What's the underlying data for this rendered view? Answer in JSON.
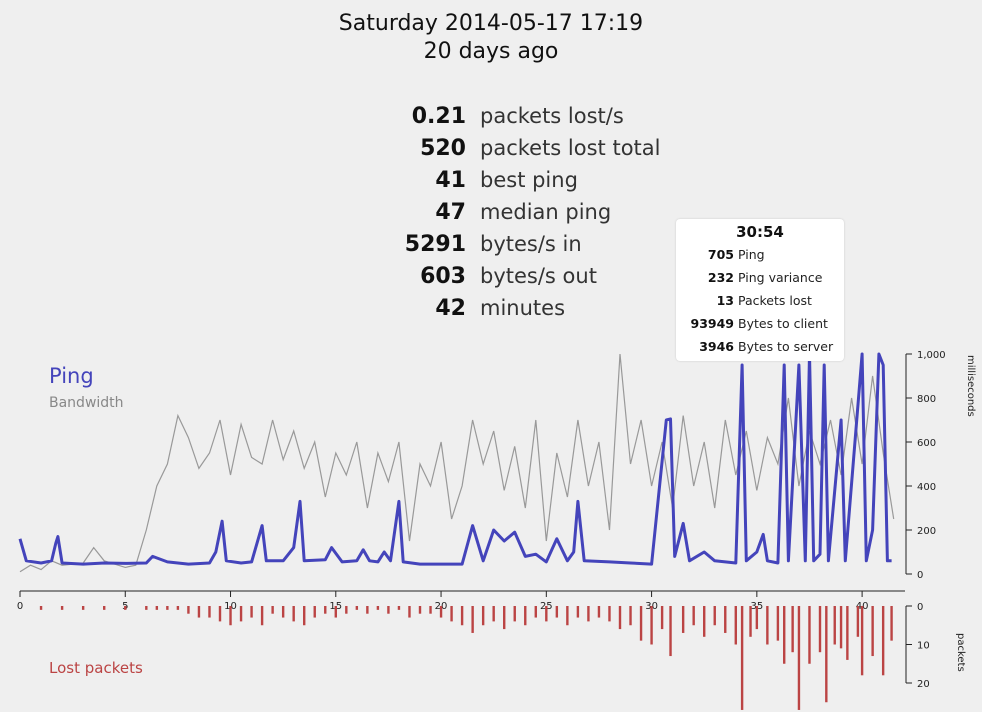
{
  "header": {
    "date": "Saturday 2014-05-17 17:19",
    "ago": "20 days ago"
  },
  "stats": [
    {
      "value": "0.21",
      "label": "packets lost/s"
    },
    {
      "value": "520",
      "label": "packets lost total"
    },
    {
      "value": "41",
      "label": "best ping"
    },
    {
      "value": "47",
      "label": "median ping"
    },
    {
      "value": "5291",
      "label": "bytes/s in"
    },
    {
      "value": "603",
      "label": "bytes/s out"
    },
    {
      "value": "42",
      "label": "minutes"
    }
  ],
  "tooltip": {
    "time": "30:54",
    "rows": [
      {
        "value": "705",
        "label": "Ping"
      },
      {
        "value": "232",
        "label": "Ping variance"
      },
      {
        "value": "13",
        "label": "Packets lost"
      },
      {
        "value": "93949",
        "label": "Bytes to client"
      },
      {
        "value": "3946",
        "label": "Bytes to server"
      }
    ]
  },
  "legend": {
    "ping": "Ping",
    "bandwidth": "Bandwidth",
    "lost": "Lost packets"
  },
  "colors": {
    "ping": "#4444bb",
    "bandwidth": "#999999",
    "lost": "#bb4444"
  },
  "chart_data": {
    "type": "line",
    "x_ticks": [
      0,
      5,
      10,
      15,
      20,
      25,
      30,
      35,
      40
    ],
    "x_range": [
      0,
      41.8
    ],
    "y_right_label": "milliseconds",
    "y_ticks": [
      0,
      200,
      400,
      600,
      800,
      1000
    ],
    "y_tick_labels": [
      "0",
      "200",
      "400",
      "600",
      "800",
      "1,000"
    ],
    "y_range": [
      0,
      1000
    ],
    "lost_label": "packets",
    "lost_ticks": [
      0,
      10,
      20
    ],
    "lost_range": [
      0,
      20
    ],
    "series": [
      {
        "name": "Ping",
        "points": [
          [
            0,
            160
          ],
          [
            0.3,
            60
          ],
          [
            1,
            50
          ],
          [
            1.5,
            60
          ],
          [
            1.7,
            140
          ],
          [
            1.8,
            170
          ],
          [
            2,
            50
          ],
          [
            3,
            45
          ],
          [
            4,
            50
          ],
          [
            5,
            48
          ],
          [
            6,
            50
          ],
          [
            6.3,
            80
          ],
          [
            7,
            55
          ],
          [
            8,
            45
          ],
          [
            9,
            50
          ],
          [
            9.3,
            100
          ],
          [
            9.6,
            240
          ],
          [
            9.8,
            60
          ],
          [
            10.5,
            50
          ],
          [
            11,
            55
          ],
          [
            11.5,
            220
          ],
          [
            11.7,
            60
          ],
          [
            12.5,
            60
          ],
          [
            13,
            120
          ],
          [
            13.3,
            330
          ],
          [
            13.5,
            60
          ],
          [
            14.5,
            65
          ],
          [
            14.8,
            120
          ],
          [
            15.3,
            55
          ],
          [
            16,
            60
          ],
          [
            16.3,
            110
          ],
          [
            16.6,
            60
          ],
          [
            17,
            55
          ],
          [
            17.3,
            100
          ],
          [
            17.6,
            60
          ],
          [
            18,
            330
          ],
          [
            18.2,
            55
          ],
          [
            19,
            45
          ],
          [
            20,
            45
          ],
          [
            21,
            45
          ],
          [
            21.5,
            220
          ],
          [
            22,
            60
          ],
          [
            22.5,
            200
          ],
          [
            23,
            150
          ],
          [
            23.5,
            190
          ],
          [
            24,
            80
          ],
          [
            24.5,
            90
          ],
          [
            25,
            55
          ],
          [
            25.5,
            160
          ],
          [
            26,
            60
          ],
          [
            26.3,
            100
          ],
          [
            26.5,
            330
          ],
          [
            26.8,
            60
          ],
          [
            28,
            55
          ],
          [
            29,
            50
          ],
          [
            30,
            45
          ],
          [
            30.7,
            700
          ],
          [
            30.9,
            705
          ],
          [
            31.1,
            80
          ],
          [
            31.5,
            230
          ],
          [
            31.8,
            60
          ],
          [
            32.5,
            100
          ],
          [
            33,
            60
          ],
          [
            34,
            50
          ],
          [
            34.3,
            950
          ],
          [
            34.5,
            60
          ],
          [
            35,
            100
          ],
          [
            35.3,
            180
          ],
          [
            35.5,
            60
          ],
          [
            36,
            50
          ],
          [
            36.3,
            950
          ],
          [
            36.5,
            60
          ],
          [
            37,
            950
          ],
          [
            37.3,
            60
          ],
          [
            37.5,
            1000
          ],
          [
            37.7,
            60
          ],
          [
            38,
            90
          ],
          [
            38.2,
            950
          ],
          [
            38.4,
            60
          ],
          [
            39,
            700
          ],
          [
            39.2,
            60
          ],
          [
            40,
            1000
          ],
          [
            40.2,
            60
          ],
          [
            40.5,
            200
          ],
          [
            40.8,
            1000
          ],
          [
            41,
            950
          ],
          [
            41.2,
            60
          ],
          [
            41.4,
            60
          ]
        ]
      },
      {
        "name": "Bandwidth",
        "points": [
          [
            0,
            10
          ],
          [
            0.5,
            40
          ],
          [
            1,
            20
          ],
          [
            1.5,
            60
          ],
          [
            2,
            40
          ],
          [
            3,
            50
          ],
          [
            3.5,
            120
          ],
          [
            4,
            60
          ],
          [
            5,
            30
          ],
          [
            5.5,
            40
          ],
          [
            6,
            200
          ],
          [
            6.5,
            400
          ],
          [
            7,
            500
          ],
          [
            7.5,
            720
          ],
          [
            8,
            620
          ],
          [
            8.5,
            480
          ],
          [
            9,
            550
          ],
          [
            9.5,
            700
          ],
          [
            10,
            450
          ],
          [
            10.5,
            680
          ],
          [
            11,
            530
          ],
          [
            11.5,
            500
          ],
          [
            12,
            700
          ],
          [
            12.5,
            520
          ],
          [
            13,
            650
          ],
          [
            13.5,
            480
          ],
          [
            14,
            600
          ],
          [
            14.5,
            350
          ],
          [
            15,
            550
          ],
          [
            15.5,
            450
          ],
          [
            16,
            600
          ],
          [
            16.5,
            300
          ],
          [
            17,
            550
          ],
          [
            17.5,
            420
          ],
          [
            18,
            600
          ],
          [
            18.5,
            150
          ],
          [
            19,
            500
          ],
          [
            19.5,
            400
          ],
          [
            20,
            600
          ],
          [
            20.5,
            250
          ],
          [
            21,
            400
          ],
          [
            21.5,
            700
          ],
          [
            22,
            500
          ],
          [
            22.5,
            650
          ],
          [
            23,
            380
          ],
          [
            23.5,
            580
          ],
          [
            24,
            300
          ],
          [
            24.5,
            700
          ],
          [
            25,
            150
          ],
          [
            25.5,
            550
          ],
          [
            26,
            350
          ],
          [
            26.5,
            700
          ],
          [
            27,
            400
          ],
          [
            27.5,
            600
          ],
          [
            28,
            200
          ],
          [
            28.5,
            1000
          ],
          [
            29,
            500
          ],
          [
            29.5,
            700
          ],
          [
            30,
            400
          ],
          [
            30.5,
            600
          ],
          [
            31,
            300
          ],
          [
            31.5,
            720
          ],
          [
            32,
            400
          ],
          [
            32.5,
            600
          ],
          [
            33,
            300
          ],
          [
            33.5,
            700
          ],
          [
            34,
            450
          ],
          [
            34.5,
            650
          ],
          [
            35,
            380
          ],
          [
            35.5,
            620
          ],
          [
            36,
            500
          ],
          [
            36.5,
            800
          ],
          [
            37,
            400
          ],
          [
            37.5,
            650
          ],
          [
            38,
            500
          ],
          [
            38.5,
            700
          ],
          [
            39,
            450
          ],
          [
            39.5,
            800
          ],
          [
            40,
            500
          ],
          [
            40.5,
            900
          ],
          [
            41,
            550
          ],
          [
            41.5,
            250
          ]
        ]
      }
    ],
    "lost_packets": [
      [
        1,
        1
      ],
      [
        2,
        1
      ],
      [
        3,
        1
      ],
      [
        4,
        1
      ],
      [
        5,
        1
      ],
      [
        6,
        1
      ],
      [
        6.5,
        1
      ],
      [
        7,
        1
      ],
      [
        7.5,
        1
      ],
      [
        8,
        2
      ],
      [
        8.5,
        3
      ],
      [
        9,
        3
      ],
      [
        9.5,
        4
      ],
      [
        10,
        5
      ],
      [
        10.5,
        4
      ],
      [
        11,
        3
      ],
      [
        11.5,
        5
      ],
      [
        12,
        2
      ],
      [
        12.5,
        3
      ],
      [
        13,
        4
      ],
      [
        13.5,
        5
      ],
      [
        14,
        3
      ],
      [
        14.5,
        2
      ],
      [
        15,
        3
      ],
      [
        15.5,
        2
      ],
      [
        16,
        1
      ],
      [
        16.5,
        2
      ],
      [
        17,
        1
      ],
      [
        17.5,
        2
      ],
      [
        18,
        1
      ],
      [
        18.5,
        3
      ],
      [
        19,
        2
      ],
      [
        19.5,
        2
      ],
      [
        20,
        3
      ],
      [
        20.5,
        4
      ],
      [
        21,
        5
      ],
      [
        21.5,
        7
      ],
      [
        22,
        5
      ],
      [
        22.5,
        4
      ],
      [
        23,
        6
      ],
      [
        23.5,
        4
      ],
      [
        24,
        5
      ],
      [
        24.5,
        3
      ],
      [
        25,
        4
      ],
      [
        25.5,
        3
      ],
      [
        26,
        5
      ],
      [
        26.5,
        3
      ],
      [
        27,
        4
      ],
      [
        27.5,
        3
      ],
      [
        28,
        4
      ],
      [
        28.5,
        6
      ],
      [
        29,
        5
      ],
      [
        29.5,
        9
      ],
      [
        30,
        10
      ],
      [
        30.5,
        6
      ],
      [
        30.9,
        13
      ],
      [
        31.5,
        7
      ],
      [
        32,
        5
      ],
      [
        32.5,
        8
      ],
      [
        33,
        5
      ],
      [
        33.5,
        7
      ],
      [
        34,
        10
      ],
      [
        34.3,
        27
      ],
      [
        34.7,
        8
      ],
      [
        35,
        6
      ],
      [
        35.5,
        10
      ],
      [
        36,
        9
      ],
      [
        36.3,
        15
      ],
      [
        36.7,
        12
      ],
      [
        37,
        27
      ],
      [
        37.5,
        15
      ],
      [
        38,
        12
      ],
      [
        38.3,
        25
      ],
      [
        38.7,
        10
      ],
      [
        39,
        11
      ],
      [
        39.3,
        14
      ],
      [
        39.8,
        8
      ],
      [
        40,
        18
      ],
      [
        40.5,
        13
      ],
      [
        41,
        18
      ],
      [
        41.4,
        9
      ]
    ]
  }
}
